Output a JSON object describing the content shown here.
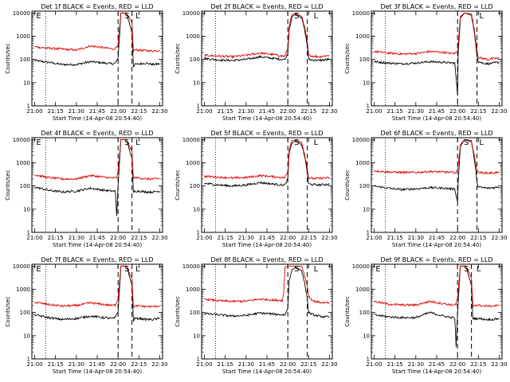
{
  "colors": {
    "events": "#000000",
    "lld": "#dd0000",
    "axes": "#000000",
    "background": "#ffffff"
  },
  "common": {
    "x_labels": [
      "21:00",
      "21:15",
      "21:30",
      "21:45",
      "22:00",
      "22:15",
      "22:30"
    ],
    "x_tick_minutes": [
      0,
      15,
      30,
      45,
      60,
      75,
      90
    ],
    "x_range_minutes": [
      -2,
      92
    ],
    "y_labels": [
      "1",
      "10",
      "100",
      "1000",
      "10000"
    ],
    "y_tick_values": [
      1,
      10,
      100,
      1000,
      10000
    ],
    "y_range": [
      1,
      12000
    ],
    "ylabel": "Counts/sec",
    "xlabel": "Start Time (14-Apr-08 20:54:40)",
    "markers": {
      "E": "E",
      "S": "S",
      "L": "L"
    }
  },
  "chart_data": [
    {
      "type": "line",
      "title": "Det 1f BLACK = Events, RED = LLD",
      "xlabel": "Start Time (14-Apr-08 20:54:40)",
      "ylabel": "Counts/sec",
      "x_unit": "minutes after 21:00",
      "markers": {
        "E": 0.5,
        "S": 64,
        "L": 72
      },
      "dotted_lines": [
        8
      ],
      "dashed_lines": [
        60,
        70
      ],
      "series": [
        {
          "name": "Events",
          "color": "#000000",
          "x": [
            0,
            10,
            20,
            30,
            40,
            50,
            56,
            58,
            60,
            61,
            62,
            66,
            70,
            71,
            72,
            76,
            80,
            85,
            90
          ],
          "y": [
            90,
            75,
            60,
            60,
            80,
            70,
            65,
            70,
            110,
            900,
            10000,
            10000,
            1500,
            50,
            60,
            65,
            70,
            60,
            65
          ]
        },
        {
          "name": "LLD",
          "color": "#dd0000",
          "x": [
            0,
            10,
            20,
            30,
            40,
            50,
            56,
            58,
            60,
            61,
            62,
            66,
            70,
            71,
            72,
            76,
            80,
            85,
            90
          ],
          "y": [
            350,
            300,
            280,
            250,
            380,
            320,
            280,
            300,
            450,
            2000,
            10000,
            10000,
            3500,
            220,
            260,
            250,
            240,
            230,
            250
          ]
        }
      ]
    },
    {
      "type": "line",
      "title": "Det 2f BLACK = Events, RED = LLD",
      "xlabel": "Start Time (14-Apr-08 20:54:40)",
      "ylabel": "Counts/sec",
      "x_unit": "minutes after 21:00",
      "markers": {
        "S": 64,
        "L": 78
      },
      "dotted_lines": [
        8
      ],
      "dashed_lines": [
        60,
        74
      ],
      "series": [
        {
          "name": "Events",
          "color": "#000000",
          "x": [
            0,
            10,
            20,
            30,
            40,
            50,
            56,
            58,
            60,
            61,
            63,
            66,
            70,
            72,
            74,
            75,
            78,
            82,
            86,
            90
          ],
          "y": [
            110,
            95,
            90,
            100,
            130,
            110,
            100,
            100,
            180,
            2000,
            7000,
            9000,
            6000,
            2000,
            400,
            100,
            95,
            90,
            95,
            100
          ]
        },
        {
          "name": "LLD",
          "color": "#dd0000",
          "x": [
            0,
            10,
            20,
            30,
            40,
            50,
            56,
            58,
            60,
            61,
            63,
            66,
            70,
            72,
            74,
            75,
            78,
            82,
            86,
            90
          ],
          "y": [
            150,
            140,
            130,
            150,
            190,
            160,
            140,
            140,
            300,
            3000,
            8500,
            10000,
            7000,
            2500,
            600,
            150,
            140,
            130,
            140,
            150
          ]
        }
      ]
    },
    {
      "type": "line",
      "title": "Det 3f BLACK = Events, RED = LLD",
      "xlabel": "Start Time (14-Apr-08 20:54:40)",
      "ylabel": "Counts/sec",
      "x_unit": "minutes after 21:00",
      "markers": {
        "L": 75
      },
      "dotted_lines": [
        8
      ],
      "dashed_lines": [
        60,
        74
      ],
      "series": [
        {
          "name": "Events",
          "color": "#000000",
          "x": [
            0,
            10,
            20,
            30,
            40,
            50,
            56,
            58,
            60,
            60.5,
            62,
            65,
            70,
            72,
            74,
            75,
            78,
            82,
            86,
            90
          ],
          "y": [
            80,
            70,
            65,
            70,
            80,
            75,
            70,
            70,
            3,
            200,
            6000,
            10000,
            8000,
            1500,
            150,
            80,
            70,
            65,
            70,
            75
          ]
        },
        {
          "name": "LLD",
          "color": "#dd0000",
          "x": [
            0,
            10,
            20,
            30,
            40,
            50,
            56,
            58,
            60,
            60.5,
            62,
            65,
            70,
            72,
            74,
            75,
            78,
            82,
            86,
            90
          ],
          "y": [
            220,
            190,
            170,
            180,
            220,
            200,
            180,
            180,
            230,
            500,
            7000,
            10000,
            9000,
            2000,
            250,
            120,
            110,
            100,
            110,
            110
          ]
        }
      ]
    },
    {
      "type": "line",
      "title": "Det 4f BLACK = Events, RED = LLD",
      "xlabel": "Start Time (14-Apr-08 20:54:40)",
      "ylabel": "Counts/sec",
      "x_unit": "minutes after 21:00",
      "markers": {
        "E": 0.5,
        "S": 64,
        "L": 72
      },
      "dotted_lines": [
        8
      ],
      "dashed_lines": [
        60,
        70
      ],
      "series": [
        {
          "name": "Events",
          "color": "#000000",
          "x": [
            0,
            10,
            20,
            30,
            40,
            50,
            56,
            58,
            59,
            60,
            61,
            62,
            66,
            70,
            71,
            72,
            76,
            80,
            85,
            90
          ],
          "y": [
            90,
            65,
            55,
            60,
            80,
            65,
            60,
            60,
            5,
            110,
            900,
            10000,
            10000,
            1500,
            50,
            60,
            60,
            55,
            55,
            60
          ]
        },
        {
          "name": "LLD",
          "color": "#dd0000",
          "x": [
            0,
            10,
            20,
            30,
            40,
            50,
            56,
            58,
            59,
            60,
            61,
            62,
            66,
            70,
            71,
            72,
            76,
            80,
            85,
            90
          ],
          "y": [
            300,
            230,
            200,
            200,
            280,
            240,
            220,
            220,
            230,
            400,
            2000,
            10000,
            10000,
            3000,
            200,
            230,
            220,
            200,
            200,
            210
          ]
        }
      ]
    },
    {
      "type": "line",
      "title": "Det 5f BLACK = Events, RED = LLD",
      "xlabel": "Start Time (14-Apr-08 20:54:40)",
      "ylabel": "Counts/sec",
      "x_unit": "minutes after 21:00",
      "markers": {
        "S": 64,
        "L": 78
      },
      "dotted_lines": [
        8
      ],
      "dashed_lines": [
        60,
        74
      ],
      "series": [
        {
          "name": "Events",
          "color": "#000000",
          "x": [
            0,
            10,
            20,
            30,
            40,
            50,
            56,
            58,
            60,
            61,
            63,
            66,
            70,
            72,
            74,
            75,
            78,
            82,
            86,
            90
          ],
          "y": [
            130,
            110,
            100,
            110,
            140,
            120,
            110,
            110,
            200,
            2500,
            7000,
            9000,
            6000,
            2000,
            400,
            120,
            115,
            110,
            115,
            120
          ]
        },
        {
          "name": "LLD",
          "color": "#dd0000",
          "x": [
            0,
            10,
            20,
            30,
            40,
            50,
            56,
            58,
            60,
            61,
            63,
            66,
            70,
            72,
            74,
            75,
            78,
            82,
            86,
            90
          ],
          "y": [
            260,
            240,
            220,
            230,
            280,
            250,
            230,
            230,
            400,
            4000,
            9000,
            10000,
            7500,
            2500,
            600,
            220,
            210,
            210,
            220,
            220
          ]
        }
      ]
    },
    {
      "type": "line",
      "title": "Det 6f BLACK = Events, RED = LLD",
      "xlabel": "Start Time (14-Apr-08 20:54:40)",
      "ylabel": "Counts/sec",
      "x_unit": "minutes after 21:00",
      "markers": {
        "S": 64,
        "L": 75
      },
      "dotted_lines": [
        8
      ],
      "dashed_lines": [
        60,
        74
      ],
      "series": [
        {
          "name": "Events",
          "color": "#000000",
          "x": [
            0,
            10,
            20,
            30,
            40,
            50,
            56,
            58,
            60,
            60.5,
            62,
            65,
            70,
            72,
            74,
            75,
            78,
            82,
            86,
            90
          ],
          "y": [
            100,
            80,
            70,
            75,
            85,
            80,
            75,
            75,
            20,
            150,
            5000,
            10000,
            8000,
            1500,
            150,
            90,
            85,
            80,
            85,
            90
          ]
        },
        {
          "name": "LLD",
          "color": "#dd0000",
          "x": [
            0,
            10,
            20,
            30,
            40,
            50,
            56,
            58,
            60,
            60.5,
            62,
            65,
            70,
            72,
            74,
            75,
            78,
            82,
            86,
            90
          ],
          "y": [
            450,
            400,
            380,
            380,
            420,
            400,
            380,
            380,
            450,
            800,
            6000,
            10000,
            9000,
            2000,
            500,
            380,
            370,
            360,
            370,
            380
          ]
        }
      ]
    },
    {
      "type": "line",
      "title": "Det 7f BLACK = Events, RED = LLD",
      "xlabel": "Start Time (14-Apr-08 20:54:40)",
      "ylabel": "Counts/sec",
      "x_unit": "minutes after 21:00",
      "markers": {
        "E": 0.5,
        "S": 64,
        "L": 72
      },
      "dotted_lines": [
        8
      ],
      "dashed_lines": [
        60,
        70
      ],
      "series": [
        {
          "name": "Events",
          "color": "#000000",
          "x": [
            0,
            10,
            20,
            30,
            40,
            50,
            56,
            58,
            60,
            61,
            62,
            66,
            70,
            71,
            72,
            76,
            80,
            85,
            90
          ],
          "y": [
            80,
            60,
            50,
            55,
            70,
            60,
            55,
            60,
            110,
            900,
            10000,
            10000,
            1500,
            45,
            55,
            55,
            50,
            50,
            55
          ]
        },
        {
          "name": "LLD",
          "color": "#dd0000",
          "x": [
            0,
            10,
            20,
            30,
            40,
            50,
            56,
            58,
            60,
            61,
            62,
            66,
            70,
            71,
            72,
            76,
            80,
            85,
            90
          ],
          "y": [
            280,
            220,
            190,
            200,
            260,
            220,
            200,
            210,
            400,
            2000,
            10000,
            10000,
            3000,
            170,
            190,
            190,
            180,
            180,
            190
          ]
        }
      ]
    },
    {
      "type": "line",
      "title": "Det 8f BLACK = Events, RED = LLD",
      "xlabel": "Start Time (14-Apr-08 20:54:40)",
      "ylabel": "Counts/sec",
      "x_unit": "minutes after 21:00",
      "markers": {
        "S": 64,
        "L": 78
      },
      "dotted_lines": [
        8
      ],
      "dashed_lines": [
        60,
        74
      ],
      "series": [
        {
          "name": "Events",
          "color": "#000000",
          "x": [
            0,
            10,
            20,
            30,
            40,
            50,
            56,
            58,
            60,
            61,
            63,
            66,
            70,
            72,
            74,
            75,
            78,
            82,
            86,
            90
          ],
          "y": [
            90,
            80,
            70,
            75,
            95,
            85,
            80,
            80,
            150,
            2500,
            7000,
            9000,
            6000,
            2000,
            400,
            100,
            80,
            70,
            65,
            65
          ]
        },
        {
          "name": "LLD",
          "color": "#dd0000",
          "x": [
            0,
            10,
            20,
            30,
            40,
            50,
            56,
            57,
            58,
            60,
            63,
            66,
            70,
            72,
            74,
            75,
            78,
            82,
            86,
            90
          ],
          "y": [
            380,
            320,
            300,
            310,
            380,
            340,
            330,
            600,
            9000,
            10000,
            10000,
            10000,
            10000,
            4000,
            1500,
            500,
            320,
            280,
            260,
            260
          ]
        }
      ]
    },
    {
      "type": "line",
      "title": "Det 9f BLACK = Events, RED = LLD",
      "xlabel": "Start Time (14-Apr-08 20:54:40)",
      "ylabel": "Counts/sec",
      "x_unit": "minutes after 21:00",
      "markers": {
        "E": 0.5,
        "S": 64,
        "L": 73
      },
      "dotted_lines": [
        8
      ],
      "dashed_lines": [
        60,
        70
      ],
      "series": [
        {
          "name": "Events",
          "color": "#000000",
          "x": [
            0,
            10,
            20,
            30,
            40,
            50,
            56,
            58,
            59,
            60,
            61,
            62,
            66,
            70,
            71,
            72,
            76,
            80,
            85,
            90
          ],
          "y": [
            80,
            65,
            60,
            60,
            100,
            70,
            60,
            60,
            3,
            100,
            900,
            10000,
            10000,
            1500,
            50,
            55,
            55,
            50,
            50,
            55
          ]
        },
        {
          "name": "LLD",
          "color": "#dd0000",
          "x": [
            0,
            10,
            20,
            30,
            40,
            50,
            56,
            58,
            59,
            60,
            61,
            62,
            66,
            70,
            71,
            72,
            76,
            80,
            85,
            90
          ],
          "y": [
            300,
            230,
            210,
            210,
            300,
            240,
            210,
            220,
            230,
            400,
            2000,
            10000,
            10000,
            3000,
            180,
            210,
            200,
            190,
            190,
            200
          ]
        }
      ]
    }
  ]
}
